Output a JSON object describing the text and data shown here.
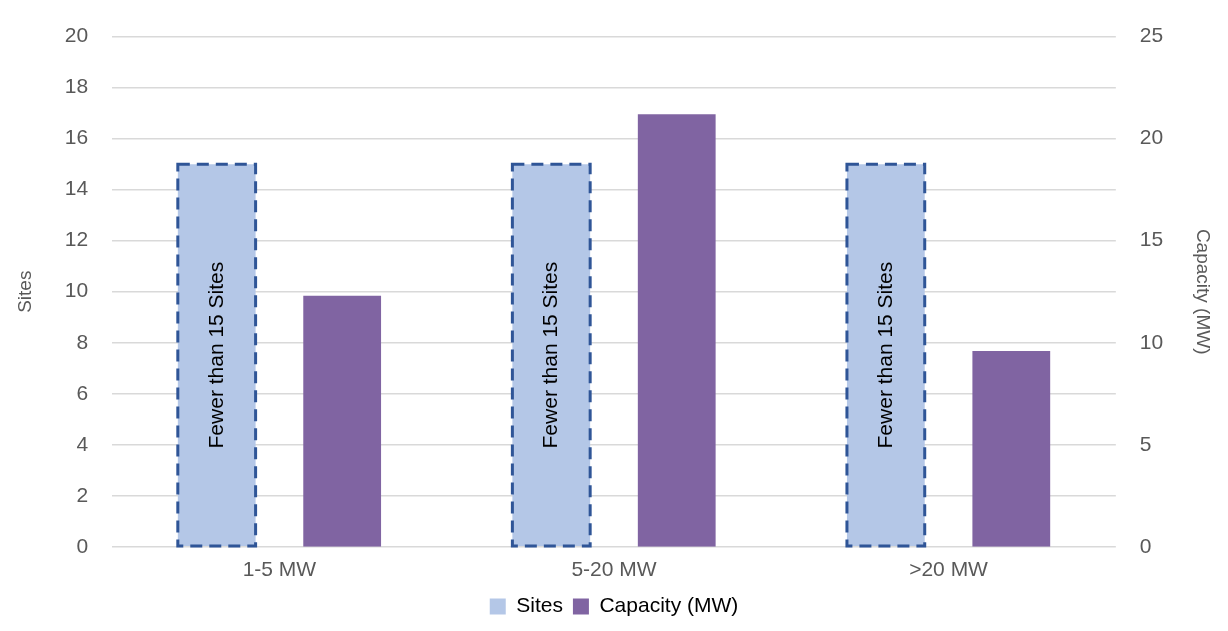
{
  "chart_data": {
    "type": "bar",
    "categories": [
      "1-5 MW",
      "5-20 MW",
      ">20 MW"
    ],
    "series": [
      {
        "name": "Sites",
        "color": "#b4c7e7",
        "line_style": "dashed",
        "values": [
          15,
          15,
          15
        ],
        "value_labels": [
          "Fewer than 15 Sites",
          "Fewer than 15 Sites",
          "Fewer than 15 Sites"
        ]
      },
      {
        "name": "Capacity (MW)",
        "color": "#8064a2",
        "axis": "y2",
        "values": [
          12.3,
          21.2,
          9.6
        ]
      }
    ],
    "ylabel": "Sites",
    "y2label": "Capacity (MW)",
    "ylim": [
      0,
      20
    ],
    "yticks": [
      0,
      2,
      4,
      6,
      8,
      10,
      12,
      14,
      16,
      18,
      20
    ],
    "y2lim": [
      0,
      25
    ],
    "y2ticks": [
      0,
      5,
      10,
      15,
      20,
      25
    ],
    "grid": "y",
    "legend": "bottom"
  }
}
